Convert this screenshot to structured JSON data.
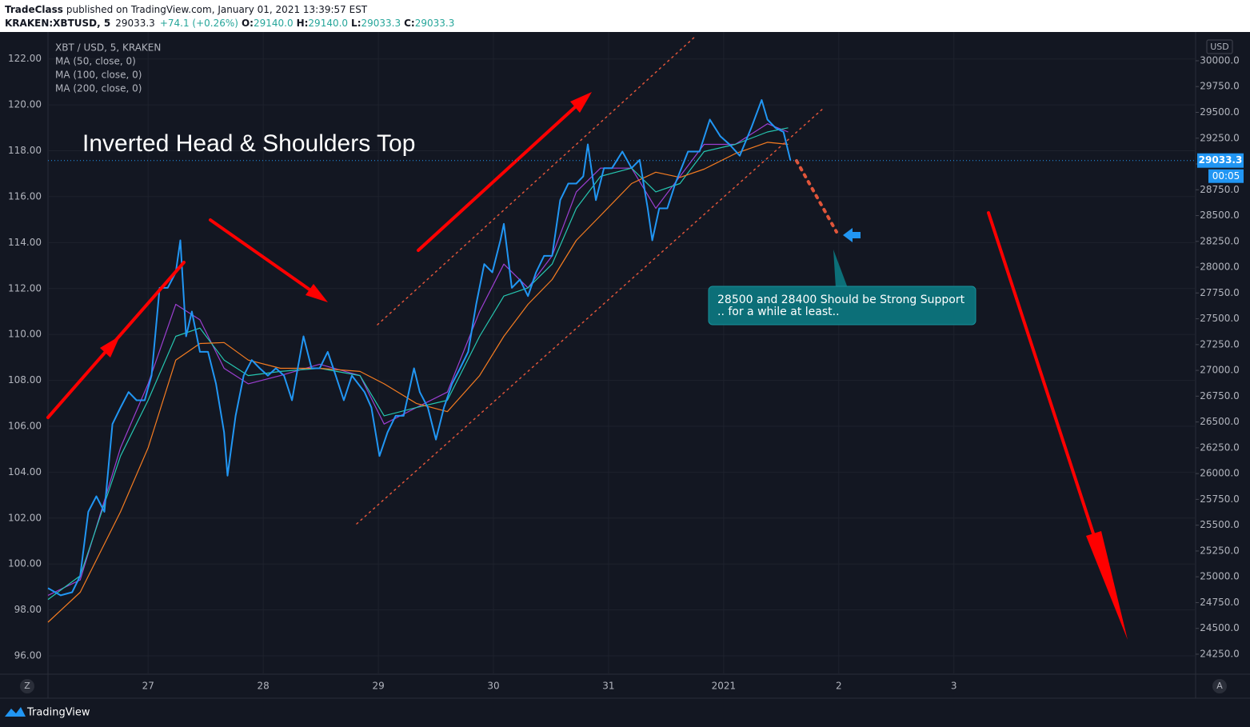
{
  "header": {
    "author": "TradeClass",
    "published": "published on TradingView.com, January 01, 2021 13:39:57 EST",
    "symbol": "KRAKEN:XBTUSD, 5",
    "price": "29033.3",
    "change": "+74.1 (+0.26%)",
    "o_label": "O:",
    "open": "29140.0",
    "h_label": "H:",
    "high": "29140.0",
    "l_label": "L:",
    "low": "29033.3",
    "c_label": "C:",
    "close": "29033.3"
  },
  "chart_data": {
    "type": "line",
    "legend_title": "XBT / USD, 5, KRAKEN",
    "y_label": "USD",
    "x": [
      26.13,
      26.24,
      26.34,
      26.41,
      26.48,
      26.55,
      26.62,
      26.69,
      26.76,
      26.83,
      26.9,
      26.97,
      27.03,
      27.1,
      27.17,
      27.24,
      27.28,
      27.33,
      27.38,
      27.45,
      27.52,
      27.59,
      27.66,
      27.69,
      27.76,
      27.83,
      27.9,
      27.97,
      28.04,
      28.11,
      28.18,
      28.25,
      28.35,
      28.42,
      28.49,
      28.56,
      28.63,
      28.7,
      28.77,
      28.88,
      28.94,
      29.01,
      29.08,
      29.15,
      29.22,
      29.31,
      29.36,
      29.43,
      29.5,
      29.57,
      29.64,
      29.71,
      29.78,
      29.85,
      29.92,
      29.99,
      30.06,
      30.09,
      30.16,
      30.23,
      30.3,
      30.37,
      30.44,
      30.51,
      30.58,
      30.65,
      30.72,
      30.78,
      30.82,
      30.89,
      30.96,
      31.03,
      31.12,
      31.2,
      31.27,
      31.34,
      31.38,
      31.44,
      31.51,
      31.58,
      31.69,
      31.79,
      31.88,
      31.97,
      32.05,
      32.14,
      32.24,
      32.33,
      32.38,
      32.45,
      32.52,
      32.58
    ],
    "series": [
      {
        "color": "#2196f3",
        "values": [
          24890,
          24820,
          24850,
          25010,
          25630,
          25780,
          25630,
          26480,
          26640,
          26790,
          26710,
          26710,
          26950,
          27800,
          27800,
          27950,
          28260,
          27330,
          27570,
          27180,
          27180,
          26870,
          26400,
          25980,
          26560,
          26950,
          27100,
          27020,
          26950,
          27020,
          26950,
          26710,
          27330,
          27020,
          27020,
          27180,
          26950,
          26710,
          26950,
          26790,
          26640,
          26170,
          26400,
          26560,
          26560,
          27020,
          26790,
          26640,
          26330,
          26640,
          26870,
          27020,
          27180,
          27640,
          28030,
          27950,
          28260,
          28420,
          27800,
          27880,
          27720,
          27950,
          28110,
          28110,
          28650,
          28810,
          28810,
          28880,
          29190,
          28650,
          28960,
          28960,
          29120,
          28960,
          29040,
          28570,
          28260,
          28570,
          28570,
          28810,
          29120,
          29120,
          29430,
          29270,
          29190,
          29080,
          29350,
          29620,
          29430,
          29350,
          29310,
          29033.3
        ]
      },
      {
        "name": "MA (50, close, 0)",
        "color": "#9c3fd1",
        "x": [
          26.13,
          26.41,
          26.76,
          27.0,
          27.24,
          27.45,
          27.66,
          27.87,
          28.15,
          28.49,
          28.84,
          29.05,
          29.33,
          29.6,
          29.88,
          30.09,
          30.3,
          30.51,
          30.72,
          30.93,
          31.2,
          31.41,
          31.62,
          31.83,
          32.1,
          32.38,
          32.56
        ],
        "values": [
          24820,
          24970,
          26250,
          26870,
          27640,
          27490,
          27020,
          26870,
          26950,
          27060,
          26950,
          26480,
          26640,
          26790,
          27570,
          28030,
          27800,
          28110,
          28730,
          28960,
          28960,
          28570,
          28880,
          29190,
          29190,
          29390,
          29310
        ]
      },
      {
        "name": "MA (100, close, 0)",
        "color": "#26c6b0",
        "x": [
          26.13,
          26.41,
          26.76,
          27.0,
          27.24,
          27.45,
          27.66,
          27.87,
          28.15,
          28.49,
          28.84,
          29.05,
          29.33,
          29.6,
          29.88,
          30.09,
          30.3,
          30.51,
          30.72,
          30.93,
          31.2,
          31.41,
          31.62,
          31.83,
          32.1,
          32.38,
          32.56
        ],
        "values": [
          24780,
          25010,
          26170,
          26710,
          27330,
          27410,
          27100,
          26950,
          26990,
          27020,
          26950,
          26560,
          26640,
          26710,
          27330,
          27720,
          27800,
          28030,
          28570,
          28880,
          28960,
          28730,
          28810,
          29120,
          29190,
          29310,
          29350
        ]
      },
      {
        "name": "MA (200, close, 0)",
        "color": "#f57c21",
        "x": [
          26.13,
          26.41,
          26.76,
          27.0,
          27.24,
          27.45,
          27.66,
          27.87,
          28.15,
          28.49,
          28.84,
          29.05,
          29.33,
          29.6,
          29.88,
          30.09,
          30.3,
          30.51,
          30.72,
          30.93,
          31.2,
          31.41,
          31.62,
          31.83,
          32.1,
          32.38,
          32.56
        ],
        "values": [
          24560,
          24850,
          25630,
          26250,
          27100,
          27260,
          27270,
          27100,
          27020,
          27020,
          26990,
          26870,
          26680,
          26600,
          26950,
          27330,
          27640,
          27880,
          28260,
          28500,
          28810,
          28920,
          28870,
          28950,
          29100,
          29210,
          29190
        ]
      }
    ],
    "xlim": [
      26.13,
      36.1
    ],
    "xticks": [
      27,
      28,
      29,
      30,
      31,
      {
        "value": 32,
        "label": "2021"
      },
      {
        "value": 33,
        "label": "2"
      },
      {
        "value": 34,
        "label": "3"
      }
    ],
    "ylim": [
      24056,
      30240
    ],
    "yticks": [
      {
        "value": 24250,
        "label": "24250.0"
      },
      {
        "value": 24500,
        "label": "24500.0"
      },
      {
        "value": 24750,
        "label": "24750.0"
      },
      {
        "value": 25000,
        "label": "25000.0"
      },
      {
        "value": 25250,
        "label": "25250.0"
      },
      {
        "value": 25500,
        "label": "25500.0"
      },
      {
        "value": 25750,
        "label": "25750.0"
      },
      {
        "value": 26000,
        "label": "26000.0"
      },
      {
        "value": 26250,
        "label": "26250.0"
      },
      {
        "value": 26500,
        "label": "26500.0"
      },
      {
        "value": 26750,
        "label": "26750.0"
      },
      {
        "value": 27000,
        "label": "27000.0"
      },
      {
        "value": 27250,
        "label": "27250.0"
      },
      {
        "value": 27500,
        "label": "27500.0"
      },
      {
        "value": 27750,
        "label": "27750.0"
      },
      {
        "value": 28000,
        "label": "28000.0"
      },
      {
        "value": 28250,
        "label": "28250.0"
      },
      {
        "value": 28500,
        "label": "28500.0"
      },
      {
        "value": 28750,
        "label": "28750.0"
      },
      {
        "value": 29000,
        "label": "29000.0"
      },
      {
        "value": 29250,
        "label": "29250.0"
      },
      {
        "value": 29500,
        "label": "29500.0"
      },
      {
        "value": 29750,
        "label": "29750.0"
      },
      {
        "value": 30000,
        "label": "30000.0"
      }
    ],
    "y2lim": [
      95.2,
      123.0
    ],
    "y2ticks": [
      {
        "value": 96,
        "label": "96.00"
      },
      {
        "value": 98,
        "label": "98.00"
      },
      {
        "value": 100,
        "label": "100.00"
      },
      {
        "value": 102,
        "label": "102.00"
      },
      {
        "value": 104,
        "label": "104.00"
      },
      {
        "value": 106,
        "label": "106.00"
      },
      {
        "value": 108,
        "label": "108.00"
      },
      {
        "value": 110,
        "label": "110.00"
      },
      {
        "value": 112,
        "label": "112.00"
      },
      {
        "value": 114,
        "label": "114.00"
      },
      {
        "value": 116,
        "label": "116.00"
      },
      {
        "value": 118,
        "label": "118.00"
      },
      {
        "value": 120,
        "label": "120.00"
      },
      {
        "value": 122,
        "label": "122.00"
      }
    ],
    "grid": true,
    "last_price": 29033.3,
    "countdown": "00:05",
    "annotations": {
      "title": "Inverted Head & Shoulders Top",
      "callout": [
        "28500 and 28400 Should be Strong Support",
        ".. for a while at least.."
      ]
    },
    "scale_buttons": [
      "Z",
      "A"
    ]
  },
  "footer": {
    "brand": "TradingView"
  }
}
